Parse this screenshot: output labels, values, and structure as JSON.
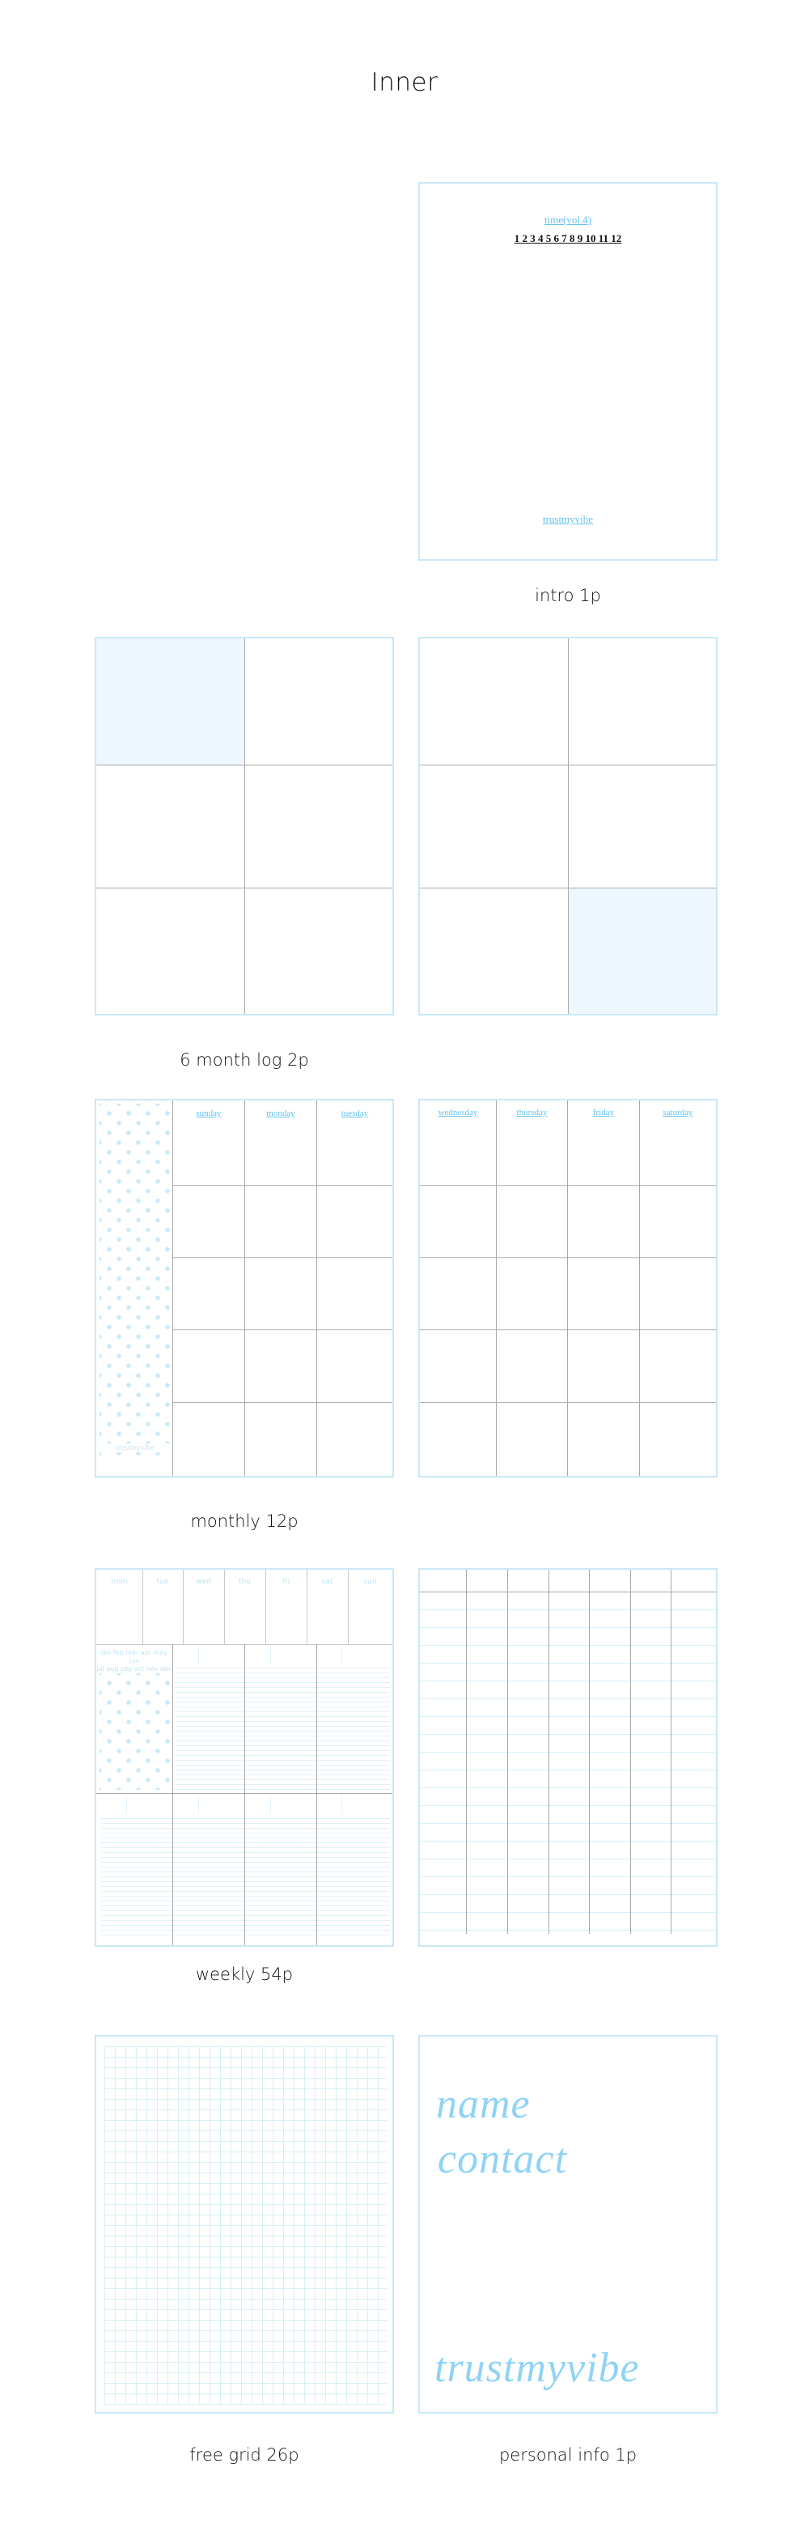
{
  "header": {
    "title": "Inner"
  },
  "colors": {
    "accent": "#62c3ee",
    "page_border": "#c9e8f8",
    "highlight_fill": "#eef7fd",
    "divider": "#a9a9a9"
  },
  "intro": {
    "title": "time(vol.4)",
    "months": "1 2 3 4 5 6 7 8 9 10 11 12",
    "brand": "trustmyvibe",
    "caption": "intro 1p"
  },
  "six_month_log": {
    "caption": "6 month log 2p"
  },
  "monthly": {
    "caption": "monthly 12p",
    "left_days": [
      "sunday",
      "monday",
      "tuesday"
    ],
    "right_days": [
      "wednesday",
      "thursday",
      "friday",
      "saturday"
    ],
    "brand": "trustmyvibe"
  },
  "weekly": {
    "caption": "weekly 54p",
    "days": [
      "mon",
      "tue",
      "wed",
      "thu",
      "fri",
      "sat",
      "sun"
    ],
    "months_row1": "jan feb mar apr may jun",
    "months_row2": "jul aug sep oct nov dec"
  },
  "free_grid": {
    "caption": "free grid 26p"
  },
  "personal_info": {
    "name_label": "name",
    "contact_label": "contact",
    "brand": "trustmyvibe",
    "caption": "personal info 1p"
  }
}
